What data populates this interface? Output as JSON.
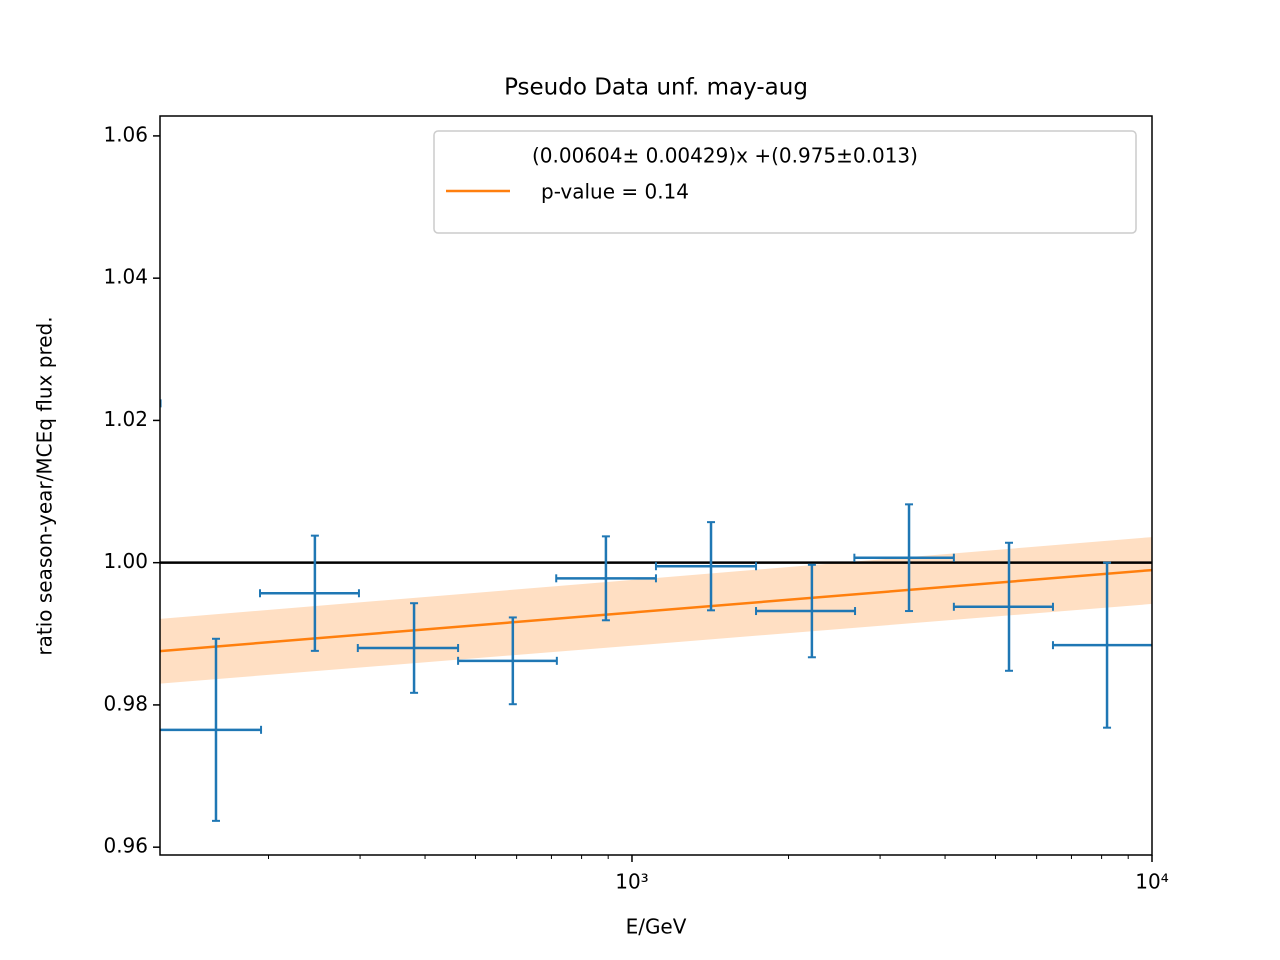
{
  "chart_data": {
    "type": "errorbar",
    "title": "Pseudo Data unf. may-aug",
    "xlabel": "E/GeV",
    "ylabel": "ratio season-year/MCEq flux pred.",
    "xscale": "log",
    "xlim": [
      123.7,
      10000
    ],
    "ylim": [
      0.9589,
      1.0628
    ],
    "xticks": [
      {
        "value": 1000,
        "label": "10³"
      },
      {
        "value": 10000,
        "label": "10⁴"
      }
    ],
    "xminorticks": [
      200,
      300,
      400,
      500,
      600,
      700,
      800,
      900,
      2000,
      3000,
      4000,
      5000,
      6000,
      7000,
      8000,
      9000
    ],
    "yticks": [
      0.96,
      0.98,
      {
        "value": 1,
        "label": "1.00"
      },
      1.02,
      1.04,
      1.06
    ],
    "hline": {
      "y": 1,
      "color": "#000000"
    },
    "series": [
      {
        "color": "#1f77b4",
        "x": [
          101,
          158.5,
          245.6,
          381,
          590,
          891,
          1419,
          2218,
          3410,
          5309,
          8195
        ],
        "x_low": [
          82,
          120,
          192.6,
          297,
          463,
          715,
          1112,
          1732,
          2677,
          4159,
          6450
        ],
        "x_high": [
          124,
          193.5,
          298.5,
          463,
          717,
          1112,
          1732,
          2685,
          4159,
          6450,
          10400
        ],
        "values": [
          1.0224,
          0.9765,
          0.9957,
          0.988,
          0.9862,
          0.9978,
          0.9995,
          0.9932,
          1.0007,
          0.9938,
          0.9884
        ],
        "yerr": [
          0.02,
          0.0128,
          0.0081,
          0.0063,
          0.0061,
          0.0059,
          0.0062,
          0.0065,
          0.0075,
          0.009,
          0.0116
        ]
      }
    ],
    "fit": {
      "color": "#ff7f0e",
      "x": [
        123.7,
        10000
      ],
      "values": [
        0.98757,
        0.99896
      ],
      "band_lower": [
        0.983,
        0.9942
      ],
      "band_upper": [
        0.9921,
        1.0036
      ],
      "legend_label": [
        "(0.00604± 0.00429)x +(0.975±0.013)",
        "p-value = 0.14"
      ]
    },
    "legend": "upper right"
  }
}
